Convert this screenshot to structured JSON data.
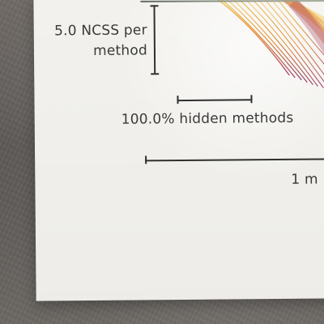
{
  "labels": {
    "ncss_line_1": "5.0 NCSS per",
    "ncss_line_2": "method",
    "hidden_methods": "100.0% hidden methods",
    "one_m": "1 m"
  },
  "colors": {
    "paper": "#f5f4f0",
    "ink": "#303030",
    "text": "#3a3a3a",
    "streak_yellow": "#e6b13b",
    "streak_orange": "#dd6b36",
    "streak_red": "#b84552",
    "streak_purple": "#8c3b6d"
  }
}
